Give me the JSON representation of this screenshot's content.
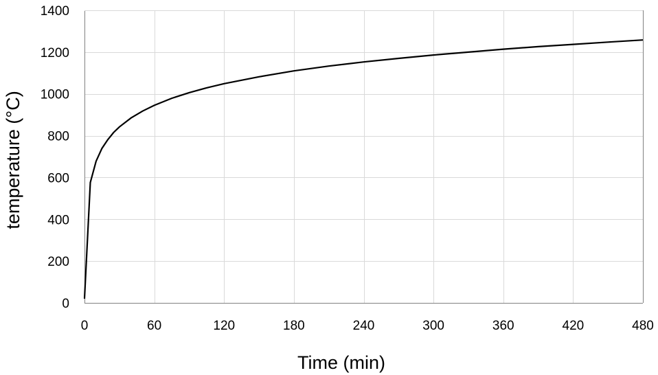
{
  "chart_data": {
    "type": "line",
    "title": "",
    "xlabel": "Time (min)",
    "ylabel": "temperature (°C)",
    "xlim": [
      0,
      480
    ],
    "ylim": [
      0,
      1400
    ],
    "x_ticks": [
      0,
      60,
      120,
      180,
      240,
      300,
      360,
      420,
      480
    ],
    "y_ticks": [
      0,
      200,
      400,
      600,
      800,
      1000,
      1200,
      1400
    ],
    "grid": true,
    "legend": "none",
    "series": [
      {
        "color": "#000000",
        "x": [
          0,
          5,
          10,
          15,
          20,
          25,
          30,
          40,
          50,
          60,
          75,
          90,
          105,
          120,
          150,
          180,
          210,
          240,
          270,
          300,
          330,
          360,
          390,
          420,
          450,
          480
        ],
        "y": [
          20,
          576,
          678,
          739,
          781,
          815,
          842,
          885,
          918,
          945,
          979,
          1006,
          1029,
          1049,
          1082,
          1110,
          1133,
          1153,
          1170,
          1186,
          1200,
          1214,
          1226,
          1237,
          1248,
          1258
        ]
      }
    ]
  }
}
